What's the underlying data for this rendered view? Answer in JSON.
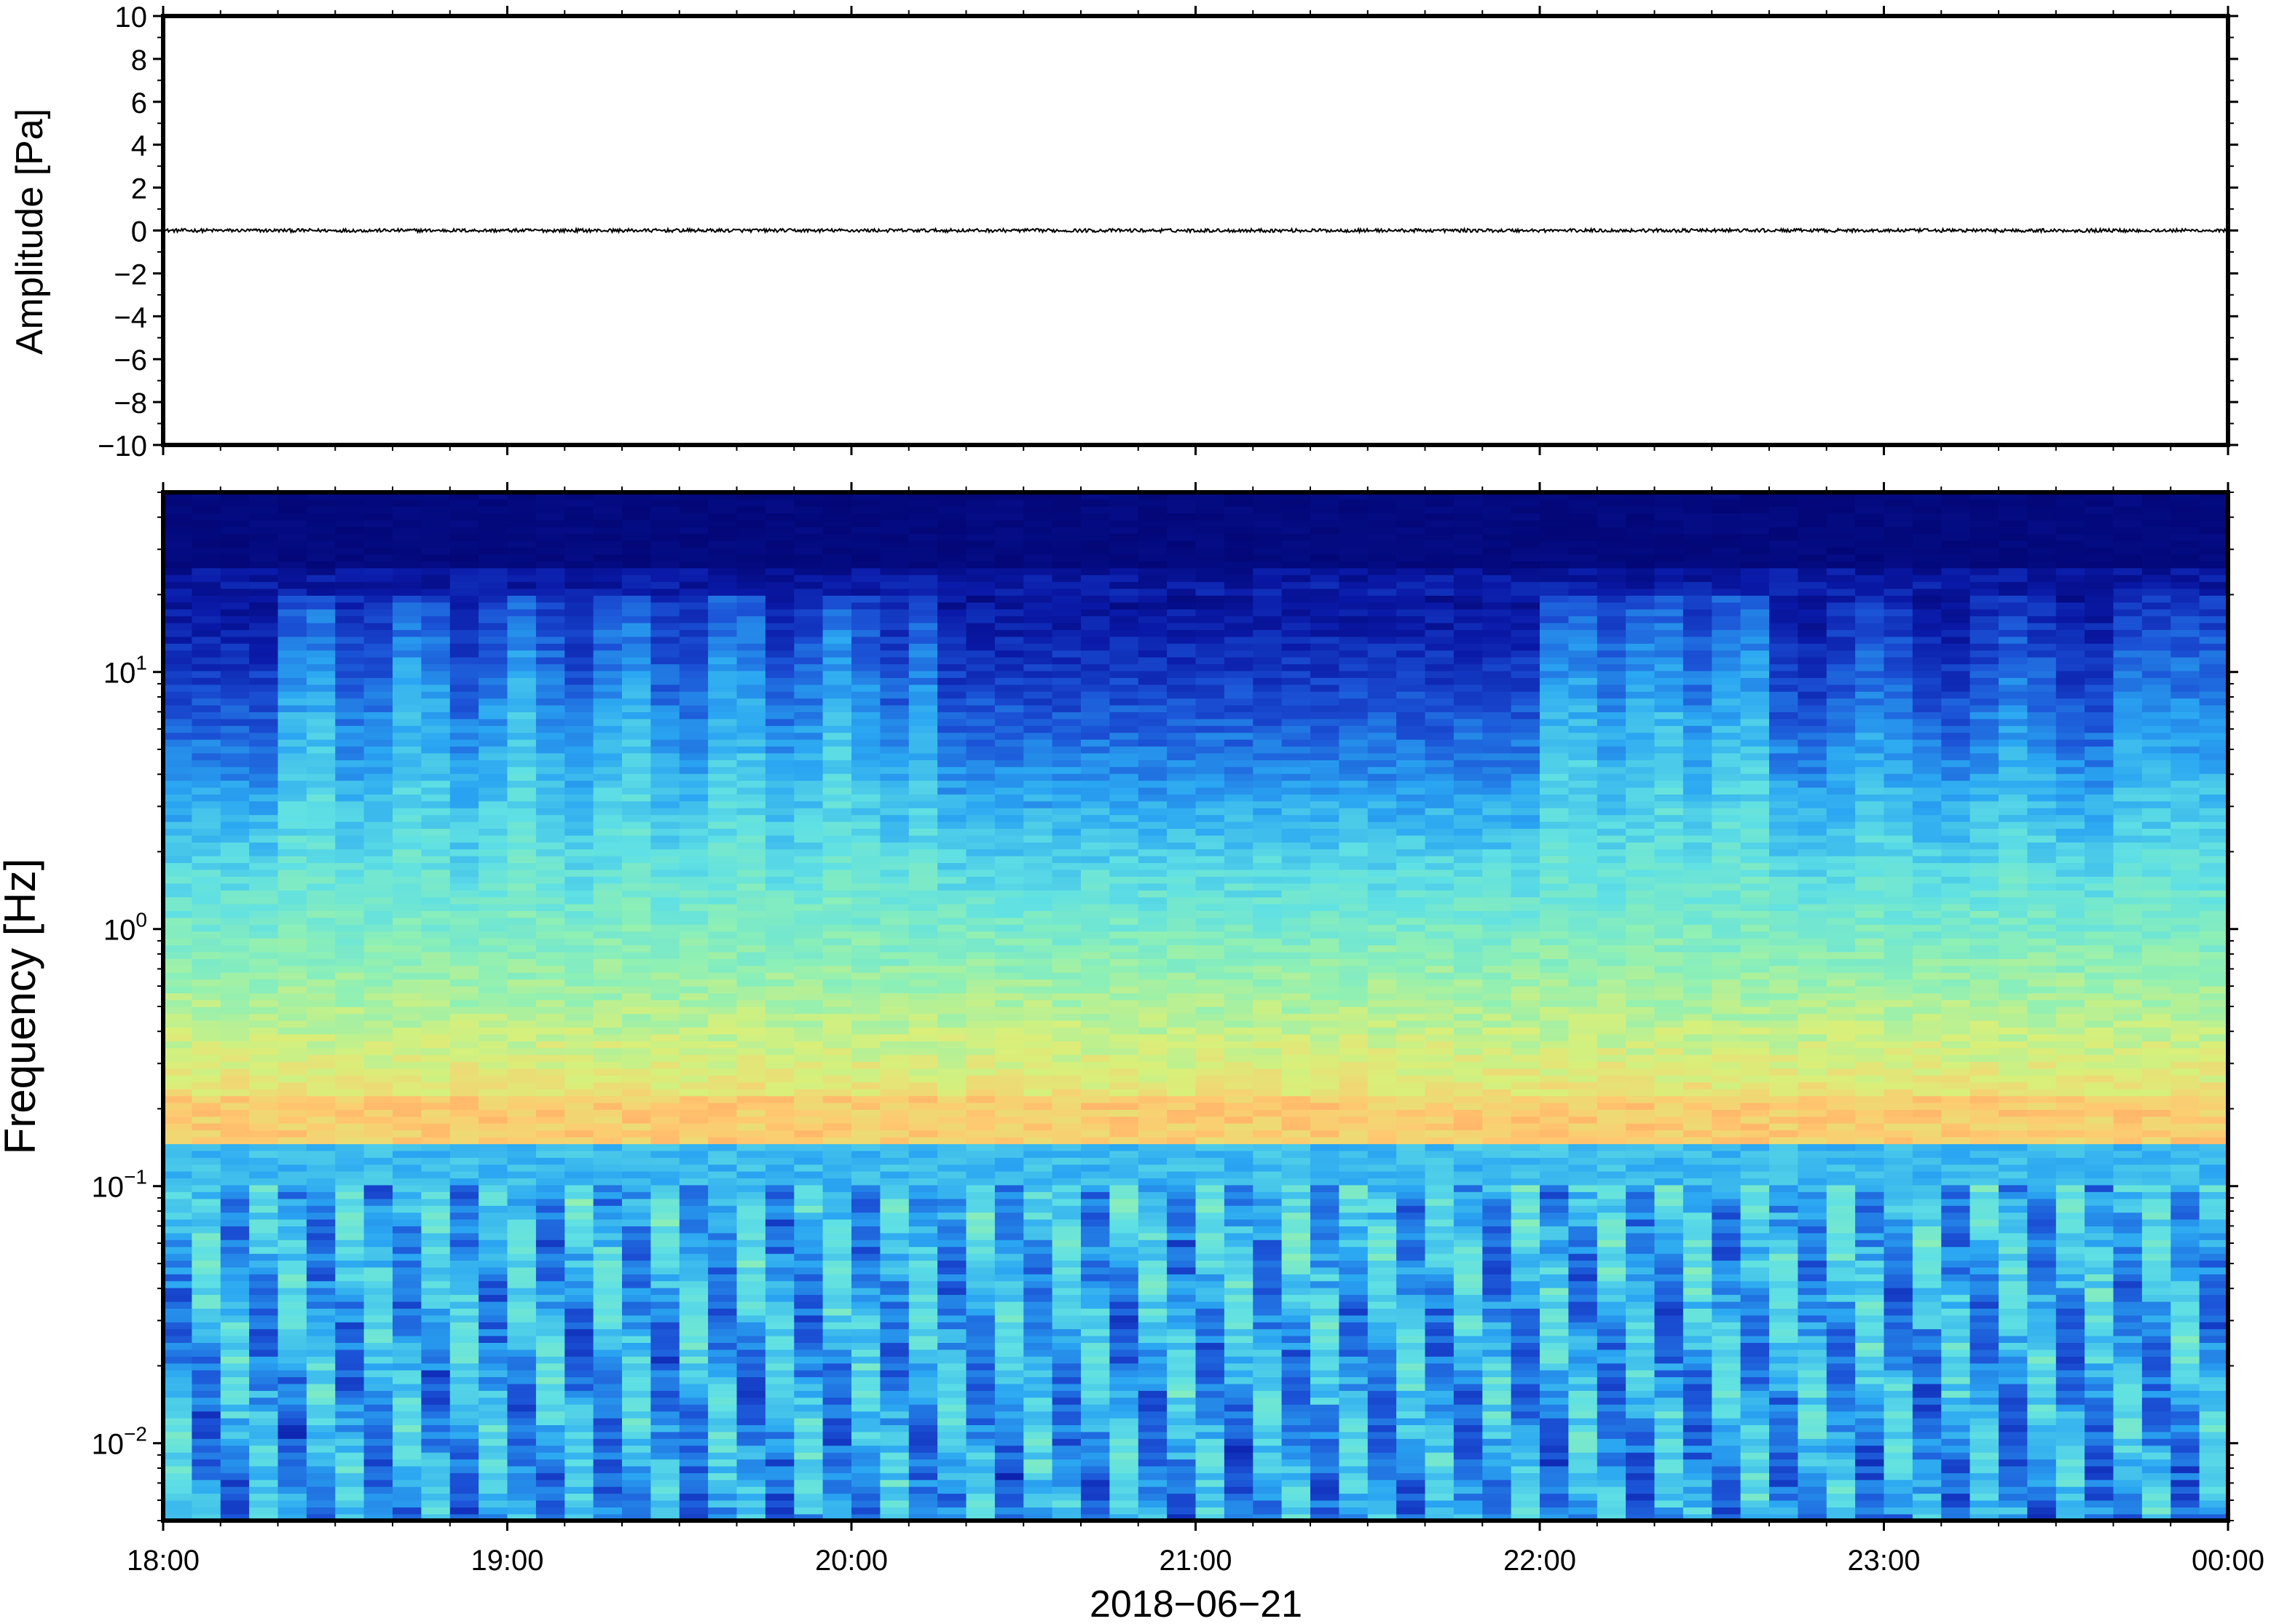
{
  "chart_data": [
    {
      "type": "line",
      "ylabel": "Amplitude [Pa]",
      "ylim": [
        -10,
        10
      ],
      "yticks": [
        10,
        8,
        6,
        4,
        2,
        0,
        -2,
        -4,
        -6,
        -8,
        -10
      ],
      "ytick_labels": [
        "10",
        "8",
        "6",
        "4",
        "2",
        "0",
        "−2",
        "−4",
        "−6",
        "−8",
        "−10"
      ],
      "series": [
        {
          "color": "#000000",
          "mean": 0,
          "amplitude": 0.08
        }
      ],
      "xlim": [
        "2018-06-21T18:00",
        "2018-06-22T00:00"
      ],
      "grid": false
    },
    {
      "type": "heatmap",
      "ylabel": "Frequency [Hz]",
      "xlabel": "2018−06−21",
      "yscale": "log",
      "ylim": [
        0.005,
        50
      ],
      "yticks": [
        0.01,
        0.1,
        1,
        10
      ],
      "ytick_labels": [
        {
          "base": "10",
          "exp": "−2"
        },
        {
          "base": "10",
          "exp": "−1"
        },
        {
          "base": "10",
          "exp": "0"
        },
        {
          "base": "10",
          "exp": "1"
        }
      ],
      "x_ticks": [
        "18:00",
        "19:00",
        "20:00",
        "21:00",
        "22:00",
        "23:00",
        "00:00"
      ],
      "xlim": [
        "2018-06-21T18:00",
        "2018-06-22T00:00"
      ],
      "colormap": [
        "#000066",
        "#0a1aa8",
        "#1b52d6",
        "#2aa6f2",
        "#5fe0e4",
        "#8ff0b4",
        "#d8f07a",
        "#ffc870",
        "#ff8c5a"
      ],
      "peak_band_hz": [
        0.15,
        0.22
      ],
      "grid": false
    }
  ]
}
